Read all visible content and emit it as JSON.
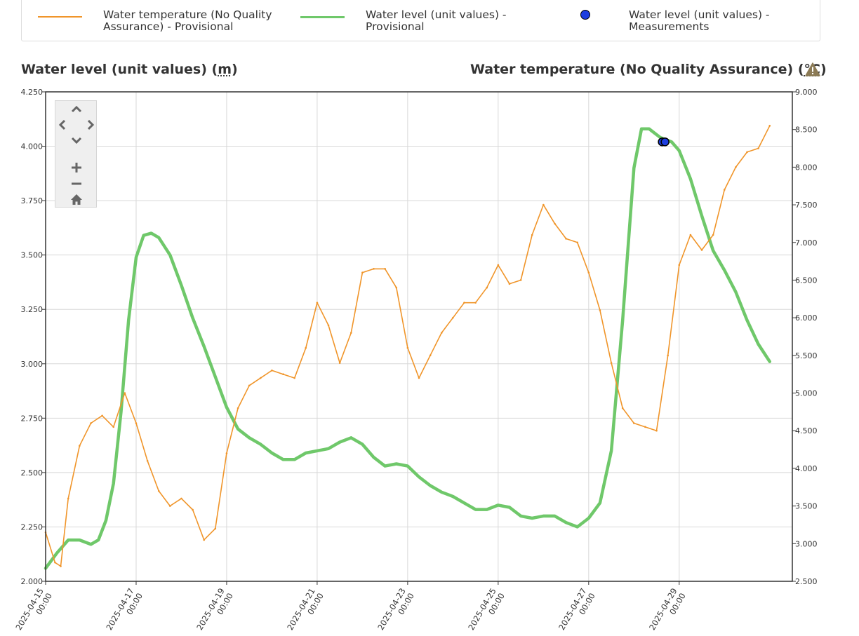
{
  "legend": {
    "items": [
      {
        "label_line1": "Water temperature (No Quality",
        "label_line2": "Assurance) - Provisional",
        "color": "#f0952a",
        "kind": "line"
      },
      {
        "label_line1": "Water level (unit values) -",
        "label_line2": "Provisional",
        "color": "#6fc86a",
        "kind": "line"
      },
      {
        "label_line1": "Water level (unit values) -",
        "label_line2": "Measurements",
        "color": "#1d3ee0",
        "kind": "dot"
      }
    ]
  },
  "left_axis_title": {
    "prefix": "Water level (unit values) (",
    "unit": "m",
    "suffix": ")"
  },
  "right_axis_title": {
    "prefix": "Water temperature (No Quality Assurance) (",
    "unit": "°C",
    "suffix": ")"
  },
  "icons": {
    "warning": "warning-icon",
    "pan_up": "chevron-up-icon",
    "pan_down": "chevron-down-icon",
    "pan_left": "chevron-left-icon",
    "pan_right": "chevron-right-icon",
    "zoom_in": "plus-icon",
    "zoom_out": "minus-icon",
    "reset": "home-icon"
  },
  "chart_data": {
    "type": "line",
    "grid": true,
    "left_axis": {
      "ylim": [
        2.0,
        4.25
      ],
      "ticks": [
        "2.000",
        "2.250",
        "2.500",
        "2.750",
        "3.000",
        "3.250",
        "3.500",
        "3.750",
        "4.000",
        "4.250"
      ]
    },
    "right_axis": {
      "ylim": [
        2.5,
        9.0
      ],
      "ticks": [
        "2.500",
        "3.000",
        "3.500",
        "4.000",
        "4.500",
        "5.000",
        "5.500",
        "6.000",
        "6.500",
        "7.000",
        "7.500",
        "8.000",
        "8.500",
        "9.000"
      ]
    },
    "x_axis": {
      "xlim": [
        "2025-04-15 00:00",
        "2025-05-01 12:00"
      ],
      "ticks": [
        {
          "date": "2025-04-15",
          "time": "00:00"
        },
        {
          "date": "2025-04-17",
          "time": "00:00"
        },
        {
          "date": "2025-04-19",
          "time": "00:00"
        },
        {
          "date": "2025-04-21",
          "time": "00:00"
        },
        {
          "date": "2025-04-23",
          "time": "00:00"
        },
        {
          "date": "2025-04-25",
          "time": "00:00"
        },
        {
          "date": "2025-04-27",
          "time": "00:00"
        },
        {
          "date": "2025-04-29",
          "time": "00:00"
        }
      ]
    },
    "series": [
      {
        "name": "Water level (unit values) - Provisional",
        "axis": "left",
        "color": "#6fc86a",
        "points": [
          [
            "2025-04-15 00:00",
            2.06
          ],
          [
            "2025-04-15 06:00",
            2.13
          ],
          [
            "2025-04-15 12:00",
            2.19
          ],
          [
            "2025-04-15 18:00",
            2.19
          ],
          [
            "2025-04-16 00:00",
            2.17
          ],
          [
            "2025-04-16 04:00",
            2.19
          ],
          [
            "2025-04-16 08:00",
            2.28
          ],
          [
            "2025-04-16 12:00",
            2.45
          ],
          [
            "2025-04-16 16:00",
            2.78
          ],
          [
            "2025-04-16 20:00",
            3.2
          ],
          [
            "2025-04-17 00:00",
            3.49
          ],
          [
            "2025-04-17 04:00",
            3.59
          ],
          [
            "2025-04-17 08:00",
            3.6
          ],
          [
            "2025-04-17 12:00",
            3.58
          ],
          [
            "2025-04-17 18:00",
            3.5
          ],
          [
            "2025-04-18 00:00",
            3.36
          ],
          [
            "2025-04-18 06:00",
            3.21
          ],
          [
            "2025-04-18 12:00",
            3.08
          ],
          [
            "2025-04-18 18:00",
            2.94
          ],
          [
            "2025-04-19 00:00",
            2.8
          ],
          [
            "2025-04-19 06:00",
            2.7
          ],
          [
            "2025-04-19 12:00",
            2.66
          ],
          [
            "2025-04-19 18:00",
            2.63
          ],
          [
            "2025-04-20 00:00",
            2.59
          ],
          [
            "2025-04-20 06:00",
            2.56
          ],
          [
            "2025-04-20 12:00",
            2.56
          ],
          [
            "2025-04-20 18:00",
            2.59
          ],
          [
            "2025-04-21 00:00",
            2.6
          ],
          [
            "2025-04-21 06:00",
            2.61
          ],
          [
            "2025-04-21 12:00",
            2.64
          ],
          [
            "2025-04-21 18:00",
            2.66
          ],
          [
            "2025-04-22 00:00",
            2.63
          ],
          [
            "2025-04-22 06:00",
            2.57
          ],
          [
            "2025-04-22 12:00",
            2.53
          ],
          [
            "2025-04-22 18:00",
            2.54
          ],
          [
            "2025-04-23 00:00",
            2.53
          ],
          [
            "2025-04-23 06:00",
            2.48
          ],
          [
            "2025-04-23 12:00",
            2.44
          ],
          [
            "2025-04-23 18:00",
            2.41
          ],
          [
            "2025-04-24 00:00",
            2.39
          ],
          [
            "2025-04-24 06:00",
            2.36
          ],
          [
            "2025-04-24 12:00",
            2.33
          ],
          [
            "2025-04-24 18:00",
            2.33
          ],
          [
            "2025-04-25 00:00",
            2.35
          ],
          [
            "2025-04-25 06:00",
            2.34
          ],
          [
            "2025-04-25 12:00",
            2.3
          ],
          [
            "2025-04-25 18:00",
            2.29
          ],
          [
            "2025-04-26 00:00",
            2.3
          ],
          [
            "2025-04-26 06:00",
            2.3
          ],
          [
            "2025-04-26 12:00",
            2.27
          ],
          [
            "2025-04-26 18:00",
            2.25
          ],
          [
            "2025-04-27 00:00",
            2.29
          ],
          [
            "2025-04-27 06:00",
            2.36
          ],
          [
            "2025-04-27 12:00",
            2.6
          ],
          [
            "2025-04-27 18:00",
            3.2
          ],
          [
            "2025-04-28 00:00",
            3.9
          ],
          [
            "2025-04-28 04:00",
            4.08
          ],
          [
            "2025-04-28 08:00",
            4.08
          ],
          [
            "2025-04-28 14:00",
            4.04
          ],
          [
            "2025-04-28 20:00",
            4.02
          ],
          [
            "2025-04-29 00:00",
            3.98
          ],
          [
            "2025-04-29 06:00",
            3.85
          ],
          [
            "2025-04-29 12:00",
            3.68
          ],
          [
            "2025-04-29 18:00",
            3.52
          ],
          [
            "2025-04-30 00:00",
            3.43
          ],
          [
            "2025-04-30 06:00",
            3.33
          ],
          [
            "2025-04-30 12:00",
            3.2
          ],
          [
            "2025-04-30 18:00",
            3.09
          ],
          [
            "2025-05-01 00:00",
            3.01
          ]
        ]
      },
      {
        "name": "Water temperature (No Quality Assurance) - Provisional",
        "axis": "right",
        "color": "#f0952a",
        "points": [
          [
            "2025-04-15 00:00",
            3.15
          ],
          [
            "2025-04-15 05:00",
            2.75
          ],
          [
            "2025-04-15 08:00",
            2.7
          ],
          [
            "2025-04-15 12:00",
            3.6
          ],
          [
            "2025-04-15 18:00",
            4.3
          ],
          [
            "2025-04-16 00:00",
            4.6
          ],
          [
            "2025-04-16 06:00",
            4.7
          ],
          [
            "2025-04-16 12:00",
            4.55
          ],
          [
            "2025-04-16 18:00",
            5.0
          ],
          [
            "2025-04-17 00:00",
            4.6
          ],
          [
            "2025-04-17 06:00",
            4.1
          ],
          [
            "2025-04-17 12:00",
            3.7
          ],
          [
            "2025-04-17 18:00",
            3.5
          ],
          [
            "2025-04-18 00:00",
            3.6
          ],
          [
            "2025-04-18 06:00",
            3.45
          ],
          [
            "2025-04-18 12:00",
            3.05
          ],
          [
            "2025-04-18 18:00",
            3.2
          ],
          [
            "2025-04-19 00:00",
            4.2
          ],
          [
            "2025-04-19 06:00",
            4.8
          ],
          [
            "2025-04-19 12:00",
            5.1
          ],
          [
            "2025-04-19 18:00",
            5.2
          ],
          [
            "2025-04-20 00:00",
            5.3
          ],
          [
            "2025-04-20 06:00",
            5.25
          ],
          [
            "2025-04-20 12:00",
            5.2
          ],
          [
            "2025-04-20 18:00",
            5.6
          ],
          [
            "2025-04-21 00:00",
            6.2
          ],
          [
            "2025-04-21 06:00",
            5.9
          ],
          [
            "2025-04-21 12:00",
            5.4
          ],
          [
            "2025-04-21 18:00",
            5.8
          ],
          [
            "2025-04-22 00:00",
            6.6
          ],
          [
            "2025-04-22 06:00",
            6.65
          ],
          [
            "2025-04-22 12:00",
            6.65
          ],
          [
            "2025-04-22 18:00",
            6.4
          ],
          [
            "2025-04-23 00:00",
            5.6
          ],
          [
            "2025-04-23 06:00",
            5.2
          ],
          [
            "2025-04-23 12:00",
            5.5
          ],
          [
            "2025-04-23 18:00",
            5.8
          ],
          [
            "2025-04-24 00:00",
            6.0
          ],
          [
            "2025-04-24 06:00",
            6.2
          ],
          [
            "2025-04-24 12:00",
            6.2
          ],
          [
            "2025-04-24 18:00",
            6.4
          ],
          [
            "2025-04-25 00:00",
            6.7
          ],
          [
            "2025-04-25 06:00",
            6.45
          ],
          [
            "2025-04-25 12:00",
            6.5
          ],
          [
            "2025-04-25 18:00",
            7.1
          ],
          [
            "2025-04-26 00:00",
            7.5
          ],
          [
            "2025-04-26 06:00",
            7.25
          ],
          [
            "2025-04-26 12:00",
            7.05
          ],
          [
            "2025-04-26 18:00",
            7.0
          ],
          [
            "2025-04-27 00:00",
            6.6
          ],
          [
            "2025-04-27 06:00",
            6.1
          ],
          [
            "2025-04-27 12:00",
            5.4
          ],
          [
            "2025-04-27 18:00",
            4.8
          ],
          [
            "2025-04-28 00:00",
            4.6
          ],
          [
            "2025-04-28 06:00",
            4.55
          ],
          [
            "2025-04-28 12:00",
            4.5
          ],
          [
            "2025-04-28 18:00",
            5.5
          ],
          [
            "2025-04-29 00:00",
            6.7
          ],
          [
            "2025-04-29 06:00",
            7.1
          ],
          [
            "2025-04-29 12:00",
            6.9
          ],
          [
            "2025-04-29 18:00",
            7.1
          ],
          [
            "2025-04-30 00:00",
            7.7
          ],
          [
            "2025-04-30 06:00",
            8.0
          ],
          [
            "2025-04-30 12:00",
            8.2
          ],
          [
            "2025-04-30 18:00",
            8.25
          ],
          [
            "2025-05-01 00:00",
            8.55
          ]
        ]
      },
      {
        "name": "Water level (unit values) - Measurements",
        "axis": "left",
        "color": "#1d3ee0",
        "kind": "scatter",
        "points": [
          [
            "2025-04-28 15:00",
            4.02
          ],
          [
            "2025-04-28 16:30",
            4.02
          ]
        ]
      }
    ]
  }
}
